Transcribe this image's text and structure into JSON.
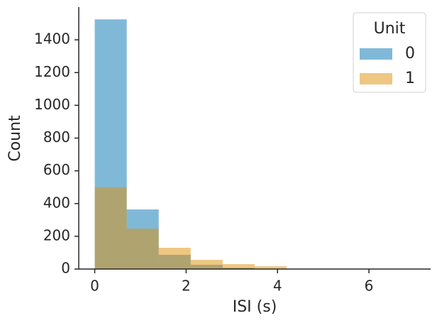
{
  "chart_data": {
    "type": "histogram",
    "xlabel": "ISI (s)",
    "ylabel": "Count",
    "bins": [
      0,
      0.7,
      1.4,
      2.1,
      2.8,
      3.5,
      4.2,
      4.9,
      5.6,
      6.3,
      7.0
    ],
    "series": [
      {
        "name": "0",
        "color": "#0173b2",
        "values": [
          1525,
          364,
          87,
          26,
          8,
          2,
          0,
          0,
          0,
          0
        ]
      },
      {
        "name": "1",
        "color": "#de8f05",
        "values": [
          500,
          247,
          130,
          56,
          30,
          17,
          0,
          0,
          0,
          0
        ]
      }
    ],
    "opacity": 0.5,
    "legend_title": "Unit",
    "legend": "upper right",
    "xlim": [
      -0.35,
      7.35
    ],
    "xticks": [
      0,
      2,
      4,
      6
    ],
    "ylim": [
      0,
      1600
    ],
    "yticks": [
      0,
      200,
      400,
      600,
      800,
      1000,
      1200,
      1400
    ]
  }
}
